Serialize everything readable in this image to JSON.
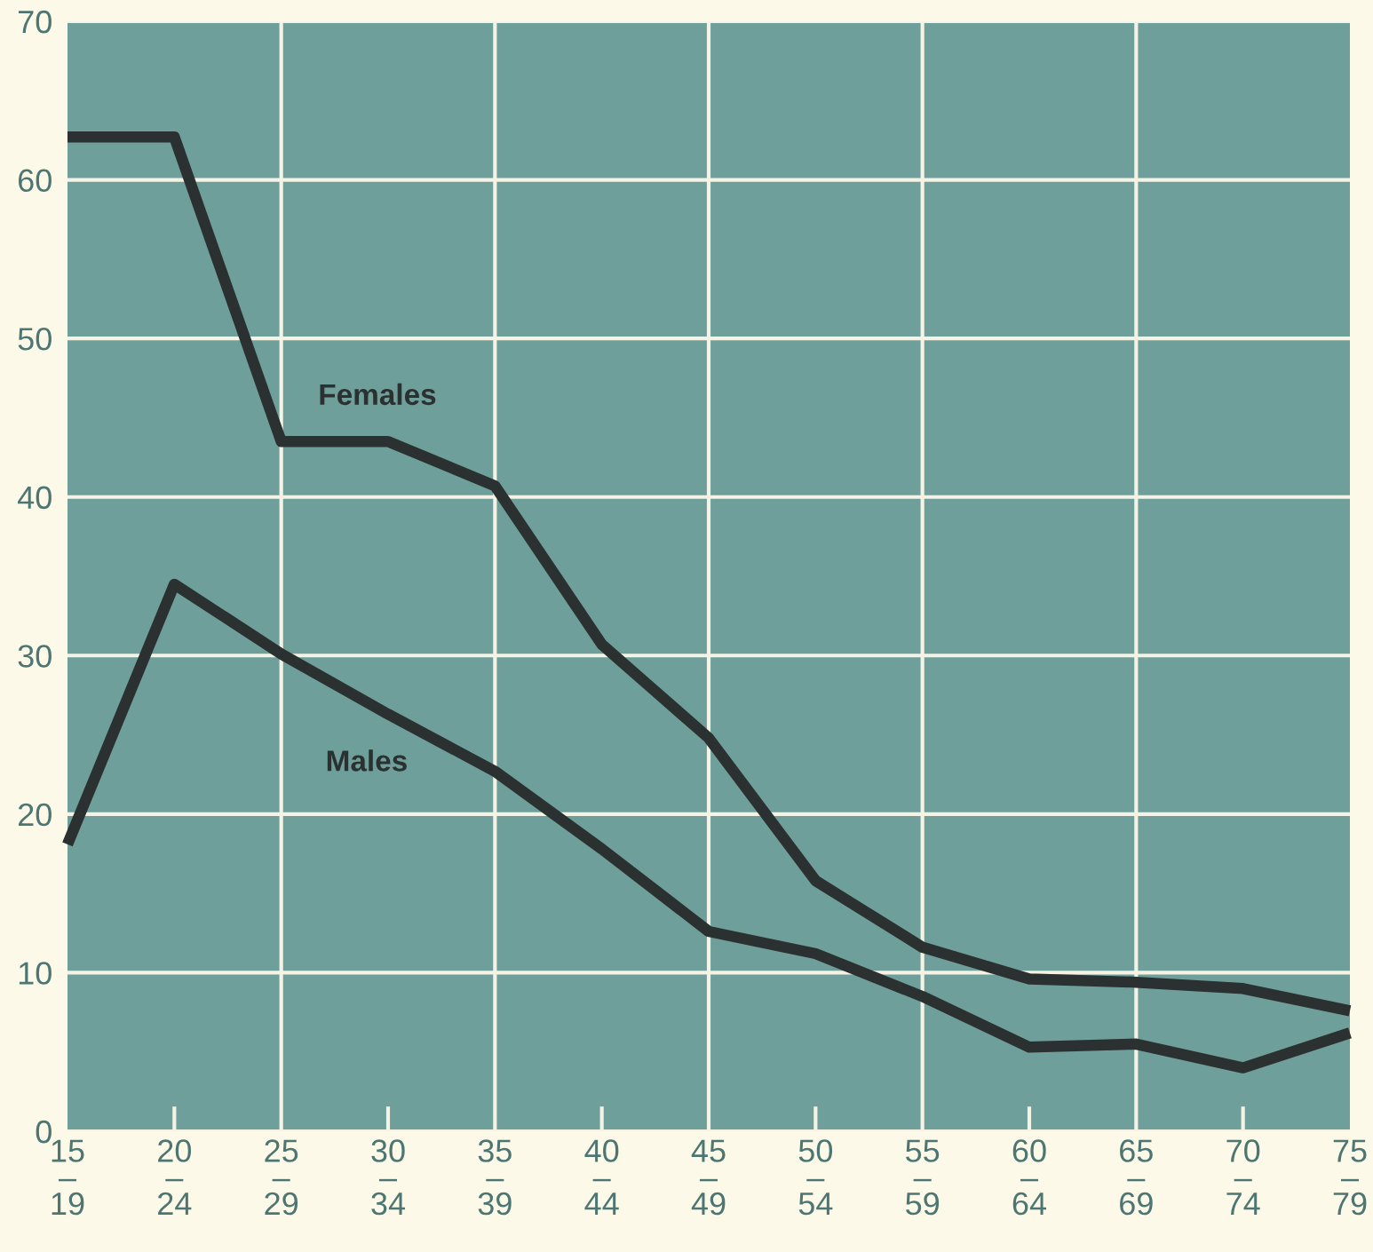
{
  "chart_data": {
    "type": "line",
    "categories": [
      "15\n–\n19",
      "20\n–\n24",
      "25\n–\n29",
      "30\n–\n34",
      "35\n–\n39",
      "40\n–\n44",
      "45\n–\n49",
      "50\n–\n54",
      "55\n–\n59",
      "60\n–\n64",
      "65\n–\n69",
      "70\n–\n74",
      "75\n–\n79"
    ],
    "series": [
      {
        "name": "Females",
        "color": "#2b3130",
        "values": [
          62.7,
          62.7,
          43.5,
          43.5,
          40.7,
          30.7,
          24.8,
          15.8,
          11.6,
          9.6,
          9.4,
          9.0,
          7.6
        ]
      },
      {
        "name": "Males",
        "color": "#2b3130",
        "values": [
          18.1,
          34.5,
          30.1,
          26.3,
          22.7,
          17.8,
          12.6,
          11.2,
          8.5,
          5.3,
          5.5,
          4.0,
          6.2
        ]
      }
    ],
    "ylim": [
      0,
      70
    ],
    "yticks": [
      0,
      10,
      20,
      30,
      40,
      50,
      60,
      70
    ],
    "grid": true,
    "marker": "none",
    "line_style": "solid"
  }
}
